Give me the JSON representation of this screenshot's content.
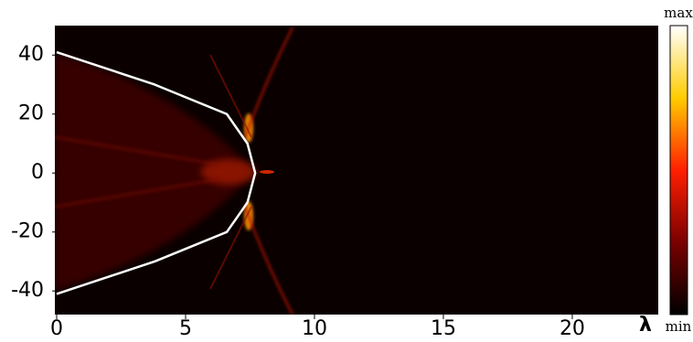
{
  "chart_data": {
    "type": "heatmap",
    "x_label": "λ",
    "xlim": [
      0,
      23.3
    ],
    "xticks": [
      0,
      5,
      10,
      15,
      20
    ],
    "ylim": [
      -48,
      50
    ],
    "yticks": [
      -40,
      -20,
      0,
      20,
      40
    ],
    "background": "#0a0000",
    "curve": {
      "color": "#ffffff",
      "x": [
        0,
        3.8,
        6.6,
        7.4,
        7.7,
        7.4,
        6.6,
        3.8,
        0
      ],
      "y": [
        41,
        30,
        20,
        10,
        0,
        -10,
        -20,
        -30,
        -41
      ]
    },
    "colorbar": {
      "max_label": "max",
      "min_label": "min",
      "colors": [
        "#000000",
        "#7a0000",
        "#ff2000",
        "#ffcc00",
        "#ffffff"
      ]
    }
  }
}
